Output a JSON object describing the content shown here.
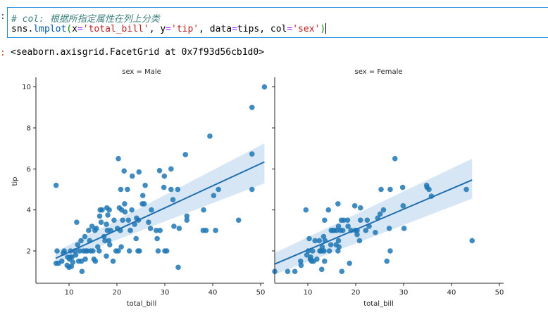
{
  "notebook": {
    "input_prompt": ":",
    "output_prompt": ":",
    "code": {
      "comment": "# col: 根据所指定属性在列上分类",
      "line2": {
        "obj": "sns.",
        "func": "lmplot",
        "open": "(",
        "arg1_key": "x",
        "arg1_val": "'total_bill'",
        "sep1": ", ",
        "arg2_key": "y",
        "arg2_val": "'tip'",
        "sep2": ", ",
        "arg3_key": "data",
        "arg3_val": "tips",
        "sep3": ", ",
        "arg4_key": "col",
        "arg4_val": "'sex'",
        "close": ")",
        "eq": "="
      }
    },
    "output_text": "<seaborn.axisgrid.FacetGrid at 0x7f93d56cb1d0>"
  },
  "colors": {
    "point": "#1f77b4",
    "line": "#1f6fb0",
    "ci_band": "#c6dbef",
    "axis": "#262626",
    "text": "#262626",
    "cell_border": "#1e88e5"
  },
  "chart_data": [
    {
      "type": "scatter",
      "title": "sex = Male",
      "xlabel": "total_bill",
      "ylabel": "tip",
      "xlim": [
        3.1,
        51.3
      ],
      "ylim": [
        0.5,
        10.5
      ],
      "xticks": [
        10,
        20,
        30,
        40,
        50
      ],
      "yticks": [
        2,
        4,
        6,
        8,
        10
      ],
      "grid": false,
      "regression": {
        "x": [
          7.2,
          50.8
        ],
        "y": [
          1.64,
          6.34
        ],
        "ci_low": [
          1.4,
          5.3
        ],
        "ci_high": [
          1.95,
          7.25
        ]
      },
      "points": [
        [
          7.3,
          5.2
        ],
        [
          7.3,
          1.4
        ],
        [
          7.5,
          2.0
        ],
        [
          7.8,
          1.4
        ],
        [
          8.5,
          1.5
        ],
        [
          8.8,
          1.9
        ],
        [
          9.0,
          2.0
        ],
        [
          9.6,
          1.3
        ],
        [
          9.7,
          1.7
        ],
        [
          10.0,
          1.2
        ],
        [
          10.1,
          1.6
        ],
        [
          10.3,
          1.7
        ],
        [
          10.3,
          2.0
        ],
        [
          10.5,
          1.25
        ],
        [
          10.6,
          1.7
        ],
        [
          10.8,
          1.45
        ],
        [
          11.2,
          2.0
        ],
        [
          11.4,
          1.8
        ],
        [
          11.6,
          3.4
        ],
        [
          11.8,
          2.3
        ],
        [
          12.0,
          1.5
        ],
        [
          12.2,
          2.0
        ],
        [
          12.5,
          2.5
        ],
        [
          12.6,
          1.5
        ],
        [
          12.7,
          1.0
        ],
        [
          13.0,
          2.0
        ],
        [
          13.3,
          2.7
        ],
        [
          13.4,
          1.6
        ],
        [
          13.5,
          2.0
        ],
        [
          13.8,
          2.0
        ],
        [
          14.1,
          3.0
        ],
        [
          14.3,
          2.5
        ],
        [
          14.5,
          2.0
        ],
        [
          14.8,
          3.2
        ],
        [
          15.0,
          2.0
        ],
        [
          15.2,
          1.6
        ],
        [
          15.4,
          3.0
        ],
        [
          15.5,
          1.5
        ],
        [
          15.7,
          3.1
        ],
        [
          16.0,
          2.2
        ],
        [
          16.3,
          2.0
        ],
        [
          16.4,
          3.7
        ],
        [
          16.5,
          4.0
        ],
        [
          16.7,
          3.4
        ],
        [
          16.9,
          4.0
        ],
        [
          17.3,
          2.7
        ],
        [
          17.5,
          2.5
        ],
        [
          17.8,
          3.3
        ],
        [
          17.8,
          1.75
        ],
        [
          17.9,
          4.1
        ],
        [
          18.0,
          3.0
        ],
        [
          18.1,
          3.75
        ],
        [
          18.3,
          2.5
        ],
        [
          18.4,
          4.0
        ],
        [
          18.5,
          2.3
        ],
        [
          18.7,
          3.0
        ],
        [
          19.2,
          1.5
        ],
        [
          19.4,
          3.5
        ],
        [
          19.8,
          2.0
        ],
        [
          20.1,
          3.1
        ],
        [
          20.3,
          2.0
        ],
        [
          20.5,
          4.1
        ],
        [
          20.7,
          3.0
        ],
        [
          20.8,
          5.0
        ],
        [
          20.9,
          2.2
        ],
        [
          21.0,
          4.0
        ],
        [
          21.2,
          3.5
        ],
        [
          21.6,
          4.3
        ],
        [
          21.7,
          3.9
        ],
        [
          22.2,
          5.0
        ],
        [
          22.4,
          3.5
        ],
        [
          22.6,
          2.0
        ],
        [
          22.8,
          3.0
        ],
        [
          23.1,
          4.0
        ],
        [
          23.7,
          3.3
        ],
        [
          24.0,
          2.6
        ],
        [
          24.1,
          3.6
        ],
        [
          24.4,
          2.0
        ],
        [
          24.5,
          3.5
        ],
        [
          24.7,
          2.0
        ],
        [
          25.3,
          4.3
        ],
        [
          25.4,
          4.7
        ],
        [
          25.7,
          4.3
        ],
        [
          25.9,
          5.2
        ],
        [
          26.6,
          3.4
        ],
        [
          27.0,
          3.1
        ],
        [
          27.2,
          4.0
        ],
        [
          28.2,
          3.0
        ],
        [
          28.4,
          2.6
        ],
        [
          28.6,
          2.0
        ],
        [
          29.0,
          3.0
        ],
        [
          29.8,
          5.1
        ],
        [
          30.0,
          2.0
        ],
        [
          30.4,
          2.0
        ],
        [
          31.3,
          5.0
        ],
        [
          31.7,
          4.5
        ],
        [
          31.9,
          3.2
        ],
        [
          32.7,
          5.0
        ],
        [
          32.8,
          1.2
        ],
        [
          33.0,
          3.1
        ],
        [
          34.6,
          3.7
        ],
        [
          34.6,
          3.5
        ],
        [
          38.1,
          4.0
        ],
        [
          38.0,
          3.0
        ],
        [
          38.6,
          3.0
        ],
        [
          40.2,
          4.7
        ],
        [
          40.6,
          3.0
        ],
        [
          41.2,
          5.0
        ],
        [
          45.4,
          3.5
        ],
        [
          48.2,
          5.0
        ],
        [
          20.3,
          6.5
        ],
        [
          23.2,
          5.65
        ],
        [
          24.6,
          5.85
        ],
        [
          21.5,
          5.9
        ],
        [
          28.9,
          5.92
        ],
        [
          29.9,
          5.65
        ],
        [
          31.3,
          6.0
        ],
        [
          34.3,
          6.7
        ],
        [
          39.4,
          7.6
        ],
        [
          48.2,
          9.0
        ],
        [
          48.2,
          6.73
        ],
        [
          50.8,
          10.0
        ]
      ]
    },
    {
      "type": "scatter",
      "title": "sex = Female",
      "xlabel": "total_bill",
      "ylabel": "",
      "xlim": [
        3.1,
        51.3
      ],
      "ylim": [
        0.5,
        10.5
      ],
      "xticks": [
        10,
        20,
        30,
        40,
        50
      ],
      "yticks": [
        2,
        4,
        6,
        8,
        10
      ],
      "grid": false,
      "regression": {
        "x": [
          3.1,
          44.3
        ],
        "y": [
          1.36,
          5.46
        ],
        "ci_low": [
          0.85,
          4.55
        ],
        "ci_high": [
          1.9,
          6.5
        ]
      },
      "points": [
        [
          3.1,
          1.0
        ],
        [
          5.8,
          1.0
        ],
        [
          7.3,
          1.0
        ],
        [
          8.5,
          1.5
        ],
        [
          8.6,
          1.3
        ],
        [
          9.6,
          4.0
        ],
        [
          9.8,
          1.8
        ],
        [
          10.1,
          2.0
        ],
        [
          10.3,
          2.6
        ],
        [
          10.5,
          1.6
        ],
        [
          10.6,
          1.7
        ],
        [
          10.8,
          1.5
        ],
        [
          11.0,
          2.0
        ],
        [
          11.2,
          1.5
        ],
        [
          11.5,
          2.5
        ],
        [
          11.9,
          1.6
        ],
        [
          12.4,
          2.5
        ],
        [
          12.5,
          2.0
        ],
        [
          12.7,
          2.0
        ],
        [
          12.9,
          1.1
        ],
        [
          13.0,
          2.2
        ],
        [
          13.0,
          2.0
        ],
        [
          13.3,
          2.7
        ],
        [
          13.4,
          2.0
        ],
        [
          13.5,
          1.5
        ],
        [
          13.5,
          3.5
        ],
        [
          13.6,
          2.5
        ],
        [
          14.3,
          4.0
        ],
        [
          14.5,
          2.0
        ],
        [
          14.8,
          2.3
        ],
        [
          14.9,
          3.0
        ],
        [
          15.2,
          3.0
        ],
        [
          15.5,
          3.0
        ],
        [
          15.9,
          2.3
        ],
        [
          16.0,
          3.0
        ],
        [
          16.3,
          4.3
        ],
        [
          16.3,
          2.0
        ],
        [
          16.4,
          3.2
        ],
        [
          16.4,
          2.5
        ],
        [
          16.5,
          2.2
        ],
        [
          16.8,
          3.0
        ],
        [
          17.0,
          3.5
        ],
        [
          17.1,
          1.0
        ],
        [
          17.3,
          3.0
        ],
        [
          17.5,
          3.5
        ],
        [
          18.3,
          3.5
        ],
        [
          18.4,
          3.2
        ],
        [
          18.7,
          1.4
        ],
        [
          19.0,
          3.0
        ],
        [
          19.8,
          4.2
        ],
        [
          19.9,
          3.0
        ],
        [
          20.3,
          2.8
        ],
        [
          20.3,
          3.0
        ],
        [
          20.8,
          2.5
        ],
        [
          21.0,
          4.1
        ],
        [
          21.0,
          3.5
        ],
        [
          22.1,
          3.0
        ],
        [
          22.4,
          3.5
        ],
        [
          22.8,
          3.2
        ],
        [
          24.1,
          2.9
        ],
        [
          24.6,
          3.6
        ],
        [
          25.1,
          3.8
        ],
        [
          25.3,
          5.0
        ],
        [
          25.8,
          4.0
        ],
        [
          26.5,
          1.5
        ],
        [
          27.0,
          3.1
        ],
        [
          27.2,
          5.0
        ],
        [
          27.2,
          2.0
        ],
        [
          28.2,
          6.5
        ],
        [
          29.8,
          5.1
        ],
        [
          29.9,
          4.2
        ],
        [
          30.1,
          3.1
        ],
        [
          34.8,
          5.2
        ],
        [
          34.9,
          5.1
        ],
        [
          35.3,
          5.0
        ],
        [
          35.8,
          4.67
        ],
        [
          43.1,
          5.0
        ],
        [
          44.3,
          2.5
        ]
      ]
    }
  ]
}
